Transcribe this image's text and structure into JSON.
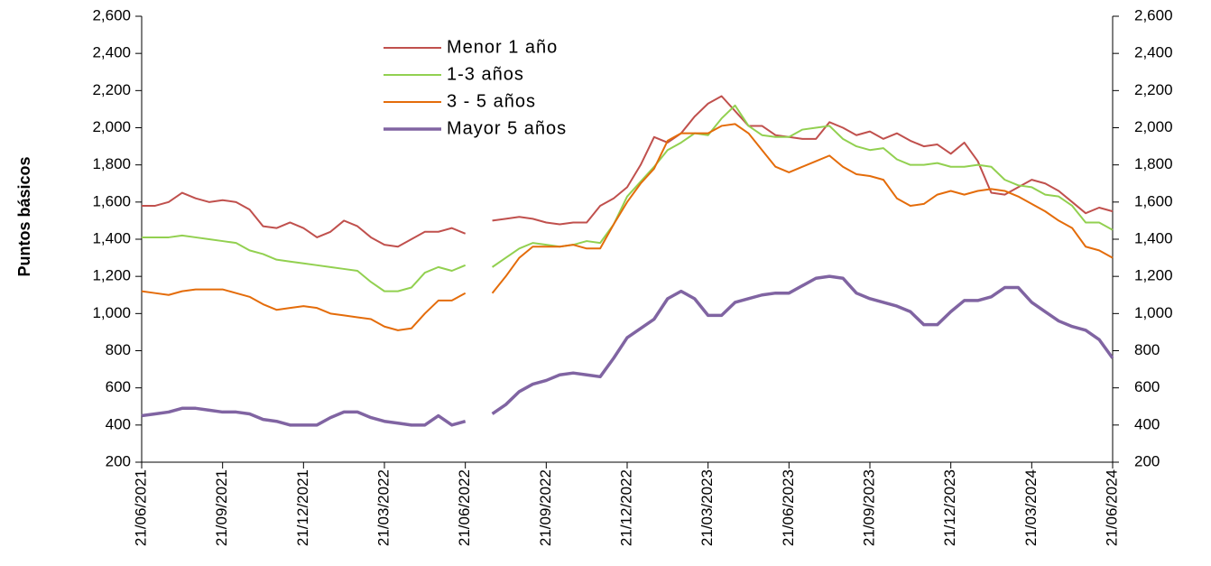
{
  "chart_data": {
    "type": "line",
    "y_label": "Puntos básicos",
    "categories": [
      "21/06/2021",
      null,
      null,
      null,
      null,
      null,
      "21/09/2021",
      null,
      null,
      null,
      null,
      null,
      "21/12/2021",
      null,
      null,
      null,
      null,
      null,
      "21/03/2022",
      null,
      null,
      null,
      null,
      null,
      "21/06/2022",
      null,
      null,
      null,
      null,
      null,
      "21/09/2022",
      null,
      null,
      null,
      null,
      null,
      "21/12/2022",
      null,
      null,
      null,
      null,
      null,
      "21/03/2023",
      null,
      null,
      null,
      null,
      null,
      "21/06/2023",
      null,
      null,
      null,
      null,
      null,
      "21/09/2023",
      null,
      null,
      null,
      null,
      null,
      "21/12/2023",
      null,
      null,
      null,
      null,
      null,
      "21/03/2024",
      null,
      null,
      null,
      null,
      null,
      "21/06/2024"
    ],
    "series": [
      {
        "name": "Menor 1 año",
        "color": "#c0504d",
        "width": 2,
        "values": [
          1580,
          1580,
          1600,
          1650,
          1620,
          1600,
          1610,
          1600,
          1560,
          1470,
          1460,
          1490,
          1460,
          1410,
          1440,
          1500,
          1470,
          1410,
          1370,
          1360,
          1400,
          1440,
          1440,
          1460,
          1430,
          null,
          1500,
          1510,
          1520,
          1510,
          1490,
          1480,
          1490,
          1490,
          1580,
          1620,
          1680,
          1800,
          1950,
          1920,
          1970,
          2060,
          2130,
          2170,
          2090,
          2010,
          2010,
          1960,
          1950,
          1940,
          1940,
          2030,
          2000,
          1960,
          1980,
          1940,
          1970,
          1930,
          1900,
          1910,
          1860,
          1920,
          1820,
          1650,
          1640,
          1680,
          1720,
          1700,
          1660,
          1600,
          1540,
          1570,
          1550
        ]
      },
      {
        "name": "1-3 años",
        "color": "#92d050",
        "width": 2,
        "values": [
          1410,
          1410,
          1410,
          1420,
          1410,
          1400,
          1390,
          1380,
          1340,
          1320,
          1290,
          1280,
          1270,
          1260,
          1250,
          1240,
          1230,
          1170,
          1120,
          1120,
          1140,
          1220,
          1250,
          1230,
          1260,
          null,
          1250,
          1300,
          1350,
          1380,
          1370,
          1360,
          1370,
          1390,
          1380,
          1480,
          1630,
          1710,
          1790,
          1880,
          1920,
          1970,
          1960,
          2050,
          2120,
          2010,
          1960,
          1950,
          1950,
          1990,
          2000,
          2010,
          1940,
          1900,
          1880,
          1890,
          1830,
          1800,
          1800,
          1810,
          1790,
          1790,
          1800,
          1790,
          1720,
          1690,
          1680,
          1640,
          1630,
          1580,
          1490,
          1490,
          1450
        ]
      },
      {
        "name": "3 - 5 años",
        "color": "#e46c0a",
        "width": 2,
        "values": [
          1120,
          1110,
          1100,
          1120,
          1130,
          1130,
          1130,
          1110,
          1090,
          1050,
          1020,
          1030,
          1040,
          1030,
          1000,
          990,
          980,
          970,
          930,
          910,
          920,
          1000,
          1070,
          1070,
          1110,
          null,
          1110,
          1200,
          1300,
          1360,
          1360,
          1360,
          1370,
          1350,
          1350,
          1480,
          1600,
          1700,
          1780,
          1930,
          1970,
          1970,
          1970,
          2010,
          2020,
          1970,
          1880,
          1790,
          1760,
          1790,
          1820,
          1850,
          1790,
          1750,
          1740,
          1720,
          1620,
          1580,
          1590,
          1640,
          1660,
          1640,
          1660,
          1670,
          1660,
          1630,
          1590,
          1550,
          1500,
          1460,
          1360,
          1340,
          1300
        ]
      },
      {
        "name": "Mayor 5 años",
        "color": "#8064a2",
        "width": 3.5,
        "values": [
          450,
          460,
          470,
          490,
          490,
          480,
          470,
          470,
          460,
          430,
          420,
          400,
          400,
          400,
          440,
          470,
          470,
          440,
          420,
          410,
          400,
          400,
          450,
          400,
          420,
          null,
          460,
          510,
          580,
          620,
          640,
          670,
          680,
          670,
          660,
          760,
          870,
          920,
          970,
          1080,
          1120,
          1080,
          990,
          990,
          1060,
          1080,
          1100,
          1110,
          1110,
          1150,
          1190,
          1200,
          1190,
          1110,
          1080,
          1060,
          1040,
          1010,
          940,
          940,
          1010,
          1070,
          1070,
          1090,
          1140,
          1140,
          1060,
          1010,
          960,
          930,
          910,
          860,
          760
        ]
      }
    ],
    "ylim": [
      200,
      2600
    ],
    "yticks": [
      200,
      400,
      600,
      800,
      {
        "value": 1000,
        "label": "1,000"
      },
      {
        "value": 1200,
        "label": "1,200"
      },
      {
        "value": 1400,
        "label": "1,400"
      },
      {
        "value": 1600,
        "label": "1,600"
      },
      {
        "value": 1800,
        "label": "1,800"
      },
      {
        "value": 2000,
        "label": "2,000"
      },
      {
        "value": 2200,
        "label": "2,200"
      },
      {
        "value": 2400,
        "label": "2,400"
      },
      {
        "value": 2600,
        "label": "2,600"
      }
    ],
    "y2lim": [
      200,
      2600
    ],
    "y2ticks": [
      200,
      400,
      600,
      800,
      {
        "value": 1000,
        "label": "1,000"
      },
      {
        "value": 1200,
        "label": "1,200"
      },
      {
        "value": 1400,
        "label": "1,400"
      },
      {
        "value": 1600,
        "label": "1,600"
      },
      {
        "value": 1800,
        "label": "1,800"
      },
      {
        "value": 2000,
        "label": "2,000"
      },
      {
        "value": 2200,
        "label": "2,200"
      },
      {
        "value": 2400,
        "label": "2,400"
      },
      {
        "value": 2600,
        "label": "2,600"
      }
    ],
    "legend": "top-center"
  }
}
